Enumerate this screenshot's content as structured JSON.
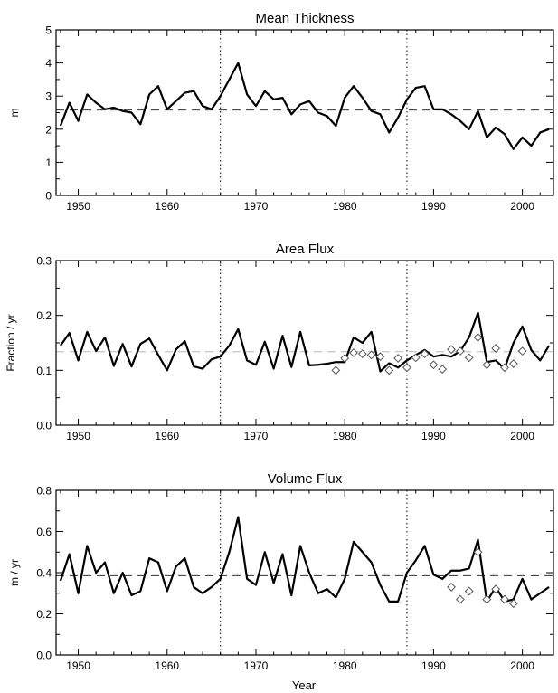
{
  "chart_data": [
    {
      "type": "line",
      "title": "Mean Thickness",
      "xlabel": "",
      "ylabel": "m",
      "xlim": [
        1947.5,
        2003.5
      ],
      "ylim": [
        0,
        5
      ],
      "x_ticks": [
        1950,
        1960,
        1970,
        1980,
        1990,
        2000
      ],
      "y_ticks": [
        0,
        1,
        2,
        3,
        4,
        5
      ],
      "y_tick_labels": [
        "0",
        "1",
        "2",
        "3",
        "4",
        "5"
      ],
      "x_tick_labels": [
        "1950",
        "1960",
        "1970",
        "1980",
        "1990",
        "2000"
      ],
      "reference_lines": {
        "horizontal_dashed": 2.58,
        "vertical_dotted": [
          1966,
          1987
        ]
      },
      "series": [
        {
          "style": "solid",
          "x": [
            1948,
            1949,
            1950,
            1951,
            1952,
            1953,
            1954,
            1955,
            1956,
            1957,
            1958,
            1959,
            1960,
            1961,
            1962,
            1963,
            1964,
            1965,
            1966,
            1967,
            1968,
            1969,
            1970,
            1971,
            1972,
            1973,
            1974,
            1975,
            1976,
            1977,
            1978,
            1979,
            1980,
            1981,
            1982,
            1983,
            1984,
            1985,
            1986,
            1987,
            1988,
            1989,
            1990,
            1991,
            1992,
            1993,
            1994,
            1995,
            1996,
            1997,
            1998,
            1999,
            2000,
            2001,
            2002,
            2003
          ],
          "values": [
            2.1,
            2.8,
            2.25,
            3.05,
            2.8,
            2.6,
            2.65,
            2.55,
            2.5,
            2.15,
            3.05,
            3.3,
            2.6,
            2.85,
            3.1,
            3.15,
            2.7,
            2.6,
            3.0,
            3.5,
            4.0,
            3.05,
            2.7,
            3.15,
            2.9,
            2.95,
            2.45,
            2.75,
            2.85,
            2.5,
            2.4,
            2.1,
            2.95,
            3.3,
            2.95,
            2.55,
            2.45,
            1.9,
            2.35,
            2.9,
            3.25,
            3.3,
            2.6,
            2.6,
            2.45,
            2.25,
            2.0,
            2.55,
            1.75,
            2.05,
            1.85,
            1.4,
            1.75,
            1.5,
            1.9,
            2.0
          ]
        }
      ]
    },
    {
      "type": "line",
      "title": "Area Flux",
      "xlabel": "",
      "ylabel": "Fraction / yr",
      "xlim": [
        1947.5,
        2003.5
      ],
      "ylim": [
        0,
        0.3
      ],
      "x_ticks": [
        1950,
        1960,
        1970,
        1980,
        1990,
        2000
      ],
      "y_ticks": [
        0,
        0.1,
        0.2,
        0.3
      ],
      "y_tick_labels": [
        "0.0",
        "0.1",
        "0.2",
        "0.3"
      ],
      "x_tick_labels": [
        "1950",
        "1960",
        "1970",
        "1980",
        "1990",
        "2000"
      ],
      "reference_lines": {
        "horizontal_dashed": 0.134,
        "vertical_dotted": [
          1966,
          1987
        ]
      },
      "series": [
        {
          "style": "solid",
          "x": [
            1948,
            1949,
            1950,
            1951,
            1952,
            1953,
            1954,
            1955,
            1956,
            1957,
            1958,
            1959,
            1960,
            1961,
            1962,
            1963,
            1964,
            1965,
            1966,
            1967,
            1968,
            1969,
            1970,
            1971,
            1972,
            1973,
            1974,
            1975,
            1976,
            1977,
            1978,
            1979,
            1980,
            1981,
            1982,
            1983,
            1984,
            1985,
            1986,
            1987,
            1988,
            1989,
            1990,
            1991,
            1992,
            1993,
            1994,
            1995,
            1996,
            1997,
            1998,
            1999,
            2000,
            2001,
            2002,
            2003
          ],
          "values": [
            0.145,
            0.168,
            0.118,
            0.17,
            0.135,
            0.16,
            0.108,
            0.148,
            0.107,
            0.148,
            0.158,
            0.128,
            0.1,
            0.138,
            0.153,
            0.107,
            0.103,
            0.12,
            0.125,
            0.145,
            0.175,
            0.118,
            0.11,
            0.152,
            0.103,
            0.163,
            0.106,
            0.17,
            0.109,
            0.11,
            0.112,
            0.115,
            0.115,
            0.16,
            0.15,
            0.17,
            0.098,
            0.113,
            0.105,
            0.118,
            0.128,
            0.137,
            0.125,
            0.128,
            0.125,
            0.135,
            0.16,
            0.205,
            0.115,
            0.118,
            0.103,
            0.15,
            0.18,
            0.137,
            0.118,
            0.145
          ]
        },
        {
          "style": "markers",
          "marker": "diamond",
          "x": [
            1979,
            1980,
            1981,
            1982,
            1983,
            1984,
            1985,
            1986,
            1987,
            1988,
            1989,
            1990,
            1991,
            1992,
            1993,
            1994,
            1995,
            1996,
            1997,
            1998,
            1999,
            2000
          ],
          "values": [
            0.1,
            0.122,
            0.132,
            0.13,
            0.128,
            0.125,
            0.1,
            0.122,
            0.105,
            0.123,
            0.13,
            0.11,
            0.102,
            0.138,
            0.135,
            0.123,
            0.16,
            0.11,
            0.14,
            0.105,
            0.112,
            0.135
          ]
        }
      ]
    },
    {
      "type": "line",
      "title": "Volume Flux",
      "xlabel": "Year",
      "ylabel": "m / yr",
      "xlim": [
        1947.5,
        2003.5
      ],
      "ylim": [
        0,
        0.8
      ],
      "x_ticks": [
        1950,
        1960,
        1970,
        1980,
        1990,
        2000
      ],
      "y_ticks": [
        0,
        0.2,
        0.4,
        0.6,
        0.8
      ],
      "y_tick_labels": [
        "0.0",
        "0.2",
        "0.4",
        "0.6",
        "0.8"
      ],
      "x_tick_labels": [
        "1950",
        "1960",
        "1970",
        "1980",
        "1990",
        "2000"
      ],
      "reference_lines": {
        "horizontal_dashed": 0.385,
        "vertical_dotted": [
          1966,
          1987
        ]
      },
      "series": [
        {
          "style": "solid",
          "x": [
            1948,
            1949,
            1950,
            1951,
            1952,
            1953,
            1954,
            1955,
            1956,
            1957,
            1958,
            1959,
            1960,
            1961,
            1962,
            1963,
            1964,
            1965,
            1966,
            1967,
            1968,
            1969,
            1970,
            1971,
            1972,
            1973,
            1974,
            1975,
            1976,
            1977,
            1978,
            1979,
            1980,
            1981,
            1982,
            1983,
            1984,
            1985,
            1986,
            1987,
            1988,
            1989,
            1990,
            1991,
            1992,
            1993,
            1994,
            1995,
            1996,
            1997,
            1998,
            1999,
            2000,
            2001,
            2002,
            2003
          ],
          "values": [
            0.36,
            0.49,
            0.3,
            0.53,
            0.4,
            0.45,
            0.3,
            0.4,
            0.29,
            0.31,
            0.47,
            0.45,
            0.31,
            0.43,
            0.47,
            0.33,
            0.3,
            0.33,
            0.37,
            0.5,
            0.67,
            0.37,
            0.34,
            0.5,
            0.35,
            0.49,
            0.29,
            0.53,
            0.4,
            0.3,
            0.32,
            0.28,
            0.37,
            0.55,
            0.5,
            0.45,
            0.34,
            0.26,
            0.26,
            0.4,
            0.46,
            0.53,
            0.39,
            0.37,
            0.41,
            0.41,
            0.42,
            0.56,
            0.26,
            0.33,
            0.26,
            0.27,
            0.37,
            0.27,
            0.3,
            0.33
          ]
        },
        {
          "style": "markers",
          "marker": "diamond",
          "x": [
            1992,
            1993,
            1994,
            1995,
            1996,
            1997,
            1998,
            1999
          ],
          "values": [
            0.33,
            0.27,
            0.31,
            0.5,
            0.27,
            0.32,
            0.27,
            0.25
          ]
        }
      ]
    }
  ]
}
